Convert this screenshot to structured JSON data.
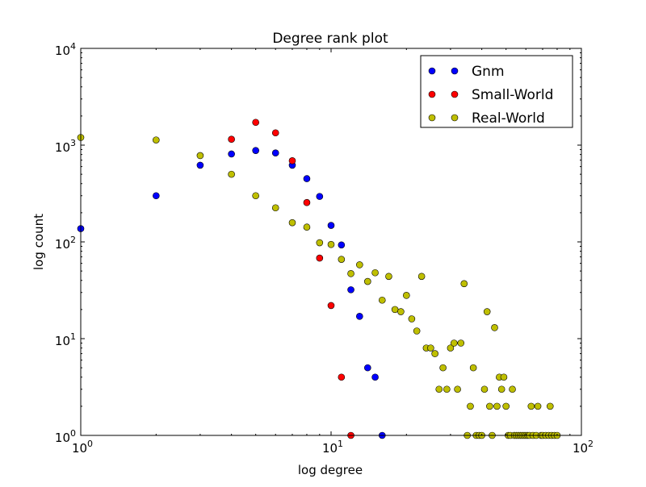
{
  "chart_data": {
    "type": "scatter",
    "title": "Degree rank plot",
    "xlabel": "log degree",
    "ylabel": "log count",
    "xscale": "log",
    "yscale": "log",
    "xlim": [
      1,
      100
    ],
    "ylim": [
      1,
      10000
    ],
    "grid": false,
    "legend": "top-right",
    "x_ticks": [
      {
        "value": 1,
        "base": "10",
        "exp": "0"
      },
      {
        "value": 10,
        "base": "10",
        "exp": "1"
      },
      {
        "value": 100,
        "base": "10",
        "exp": "2"
      }
    ],
    "y_ticks": [
      {
        "value": 1,
        "base": "10",
        "exp": "0"
      },
      {
        "value": 10,
        "base": "10",
        "exp": "1"
      },
      {
        "value": 100,
        "base": "10",
        "exp": "2"
      },
      {
        "value": 1000,
        "base": "10",
        "exp": "3"
      },
      {
        "value": 10000,
        "base": "10",
        "exp": "4"
      }
    ],
    "series": [
      {
        "name": "Gnm",
        "color": "#0000ff",
        "points": [
          [
            1,
            137
          ],
          [
            2,
            300
          ],
          [
            3,
            620
          ],
          [
            4,
            810
          ],
          [
            5,
            880
          ],
          [
            6,
            830
          ],
          [
            7,
            620
          ],
          [
            8,
            450
          ],
          [
            9,
            295
          ],
          [
            10,
            148
          ],
          [
            11,
            93
          ],
          [
            12,
            32
          ],
          [
            13,
            17
          ],
          [
            14,
            5
          ],
          [
            15,
            4
          ],
          [
            16,
            1
          ]
        ]
      },
      {
        "name": "Small-World",
        "color": "#ff0000",
        "points": [
          [
            4,
            1150
          ],
          [
            5,
            1720
          ],
          [
            6,
            1340
          ],
          [
            7,
            690
          ],
          [
            8,
            255
          ],
          [
            9,
            68
          ],
          [
            10,
            22
          ],
          [
            11,
            4
          ],
          [
            12,
            1
          ]
        ]
      },
      {
        "name": "Real-World",
        "color": "#bfbf00",
        "points": [
          [
            1,
            1200
          ],
          [
            2,
            1130
          ],
          [
            3,
            780
          ],
          [
            4,
            500
          ],
          [
            5,
            300
          ],
          [
            6,
            225
          ],
          [
            7,
            158
          ],
          [
            8,
            142
          ],
          [
            9,
            98
          ],
          [
            10,
            94
          ],
          [
            11,
            66
          ],
          [
            12,
            47
          ],
          [
            13,
            58
          ],
          [
            14,
            39
          ],
          [
            15,
            48
          ],
          [
            16,
            25
          ],
          [
            17,
            44
          ],
          [
            18,
            20
          ],
          [
            19,
            19
          ],
          [
            20,
            28
          ],
          [
            21,
            16
          ],
          [
            22,
            12
          ],
          [
            23,
            44
          ],
          [
            24,
            8
          ],
          [
            25,
            8
          ],
          [
            26,
            7
          ],
          [
            27,
            3
          ],
          [
            28,
            5
          ],
          [
            29,
            3
          ],
          [
            30,
            8
          ],
          [
            31,
            9
          ],
          [
            32,
            3
          ],
          [
            33,
            9
          ],
          [
            34,
            37
          ],
          [
            35,
            1
          ],
          [
            36,
            2
          ],
          [
            37,
            5
          ],
          [
            38,
            1
          ],
          [
            39,
            1
          ],
          [
            40,
            1
          ],
          [
            41,
            3
          ],
          [
            42,
            19
          ],
          [
            43,
            2
          ],
          [
            44,
            1
          ],
          [
            45,
            13
          ],
          [
            46,
            2
          ],
          [
            47,
            4
          ],
          [
            48,
            3
          ],
          [
            49,
            4
          ],
          [
            50,
            2
          ],
          [
            51,
            1
          ],
          [
            52,
            1
          ],
          [
            53,
            3
          ],
          [
            54,
            1
          ],
          [
            55,
            1
          ],
          [
            56,
            1
          ],
          [
            57,
            1
          ],
          [
            58,
            1
          ],
          [
            59,
            1
          ],
          [
            60,
            1
          ],
          [
            61,
            1
          ],
          [
            62,
            1
          ],
          [
            63,
            2
          ],
          [
            64,
            1
          ],
          [
            66,
            1
          ],
          [
            67,
            2
          ],
          [
            69,
            1
          ],
          [
            70,
            1
          ],
          [
            72,
            1
          ],
          [
            74,
            1
          ],
          [
            75,
            2
          ],
          [
            76,
            1
          ],
          [
            78,
            1
          ],
          [
            80,
            1
          ]
        ]
      }
    ]
  }
}
